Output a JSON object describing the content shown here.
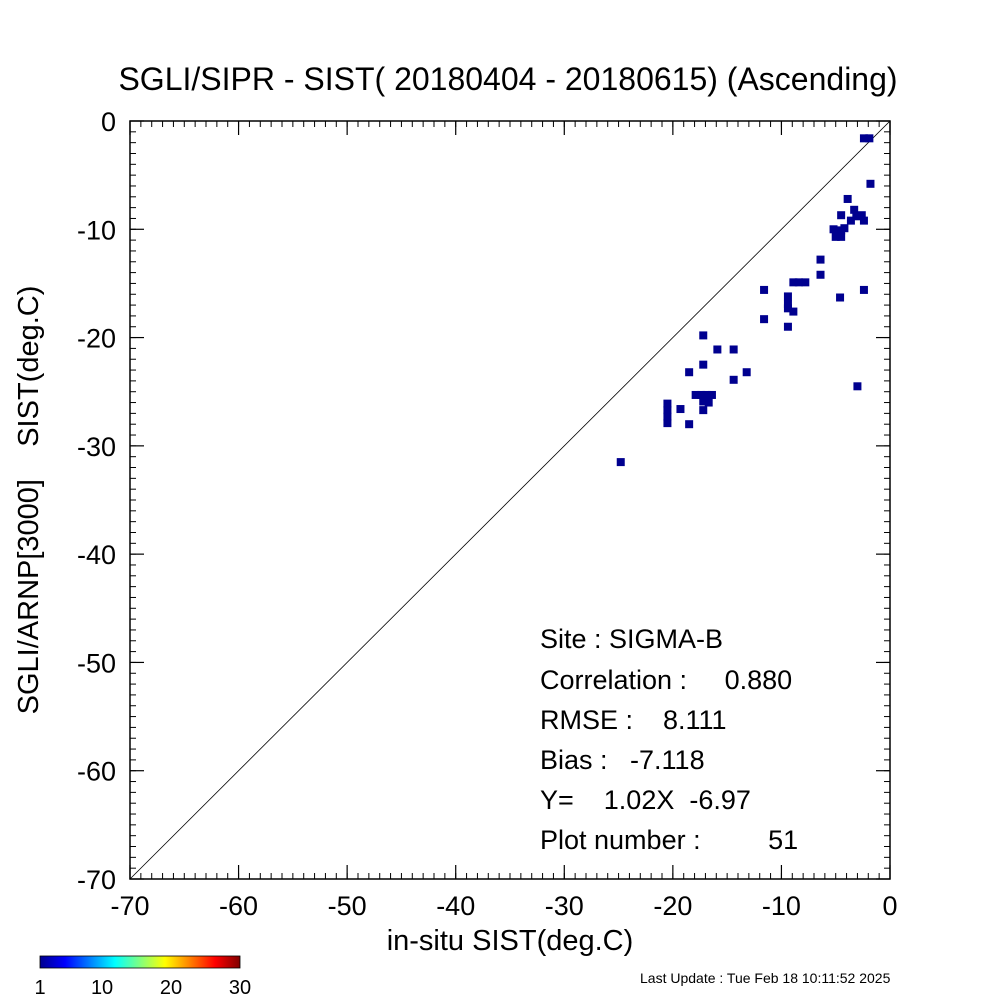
{
  "chart_data": {
    "type": "scatter",
    "title": "SGLI/SIPR - SIST( 20180404 - 20180615) (Ascending)",
    "xlabel": "in-situ SIST(deg.C)",
    "ylabel": "SGLI/ARNP[3000]    SIST(deg.C)",
    "xlim": [
      -70,
      0
    ],
    "ylim": [
      -70,
      0
    ],
    "xticks": [
      "-70",
      "-60",
      "-50",
      "-40",
      "-30",
      "-20",
      "-10",
      "0"
    ],
    "yticks": [
      "-70",
      "-60",
      "-50",
      "-40",
      "-30",
      "-20",
      "-10",
      "0"
    ],
    "tick_values": [
      -70,
      -60,
      -50,
      -40,
      -30,
      -20,
      -10,
      0
    ],
    "grid": false,
    "reference_line": "y = x",
    "points": [
      {
        "x": -1.9,
        "y": -1.6
      },
      {
        "x": -2.4,
        "y": -1.6
      },
      {
        "x": -1.8,
        "y": -5.8
      },
      {
        "x": -3.9,
        "y": -7.2
      },
      {
        "x": -3.3,
        "y": -8.2
      },
      {
        "x": -4.5,
        "y": -8.7
      },
      {
        "x": -2.6,
        "y": -8.7
      },
      {
        "x": -3.1,
        "y": -8.8
      },
      {
        "x": -2.4,
        "y": -9.2
      },
      {
        "x": -3.6,
        "y": -9.2
      },
      {
        "x": -4.2,
        "y": -9.9
      },
      {
        "x": -5.2,
        "y": -10.0
      },
      {
        "x": -4.5,
        "y": -10.1
      },
      {
        "x": -4.5,
        "y": -10.7
      },
      {
        "x": -5.0,
        "y": -10.7
      },
      {
        "x": -6.4,
        "y": -12.8
      },
      {
        "x": -6.4,
        "y": -14.2
      },
      {
        "x": -7.8,
        "y": -14.9
      },
      {
        "x": -8.4,
        "y": -14.9
      },
      {
        "x": -8.9,
        "y": -14.9
      },
      {
        "x": -2.4,
        "y": -15.6
      },
      {
        "x": -11.6,
        "y": -15.6
      },
      {
        "x": -9.4,
        "y": -16.2
      },
      {
        "x": -4.6,
        "y": -16.3
      },
      {
        "x": -9.4,
        "y": -16.9
      },
      {
        "x": -9.4,
        "y": -17.3
      },
      {
        "x": -8.9,
        "y": -17.6
      },
      {
        "x": -11.6,
        "y": -18.3
      },
      {
        "x": -9.4,
        "y": -19.0
      },
      {
        "x": -17.2,
        "y": -19.8
      },
      {
        "x": -15.9,
        "y": -21.1
      },
      {
        "x": -14.4,
        "y": -21.1
      },
      {
        "x": -17.2,
        "y": -22.5
      },
      {
        "x": -13.2,
        "y": -23.2
      },
      {
        "x": -18.5,
        "y": -23.2
      },
      {
        "x": -14.4,
        "y": -23.9
      },
      {
        "x": -3.0,
        "y": -24.5
      },
      {
        "x": -16.4,
        "y": -25.3
      },
      {
        "x": -16.9,
        "y": -25.3
      },
      {
        "x": -17.4,
        "y": -25.3
      },
      {
        "x": -17.9,
        "y": -25.3
      },
      {
        "x": -17.2,
        "y": -25.9
      },
      {
        "x": -16.7,
        "y": -26.0
      },
      {
        "x": -19.3,
        "y": -26.6
      },
      {
        "x": -20.5,
        "y": -26.7
      },
      {
        "x": -17.2,
        "y": -26.7
      },
      {
        "x": -20.5,
        "y": -27.3
      },
      {
        "x": -20.5,
        "y": -27.9
      },
      {
        "x": -18.5,
        "y": -28.0
      },
      {
        "x": -24.8,
        "y": -31.5
      },
      {
        "x": -20.5,
        "y": -26.1
      }
    ],
    "point_color": "#00008f",
    "colorbar": {
      "min": 1,
      "max": 30,
      "tick_labels": [
        "1",
        "10",
        "20",
        "30"
      ],
      "tick_values": [
        1,
        10,
        20,
        30
      ],
      "colors": [
        "#00008f",
        "#0000ff",
        "#0080ff",
        "#00ffff",
        "#80ff80",
        "#ffff00",
        "#ff8000",
        "#ff0000",
        "#800000"
      ]
    },
    "stats": {
      "site": "Site : SIGMA-B",
      "correlation": "Correlation :     0.880",
      "rmse": "RMSE :    8.111",
      "bias": "Bias :   -7.118",
      "regression": "Y=    1.02X  -6.97",
      "plot_number": "Plot number :         51"
    }
  },
  "footer": {
    "last_update": "Last Update : Tue Feb 18 10:11:52 2025"
  }
}
